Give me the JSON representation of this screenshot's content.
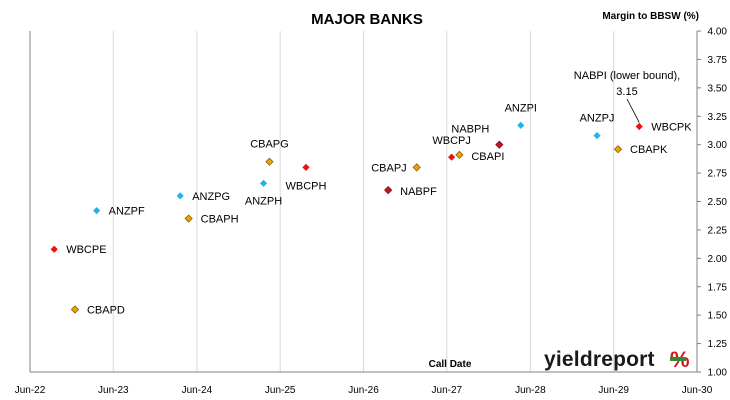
{
  "colors": {
    "CBA": "#e8a400",
    "ANZ": "#1fb5e8",
    "WBC": "#e8140e",
    "NAB": "#c8141e",
    "logo_red": "#d4141c",
    "logo_green": "#2e8b3a"
  },
  "logo": {
    "text": "yieldreport",
    "pct": "%"
  },
  "chart_data": {
    "type": "scatter",
    "title": "MAJOR BANKS",
    "xlabel": "Call Date",
    "ylabel": "Margin to BBSW (%)",
    "x_ticks": [
      "Jun-22",
      "Jun-23",
      "Jun-24",
      "Jun-25",
      "Jun-26",
      "Jun-27",
      "Jun-28",
      "Jun-29",
      "Jun-30"
    ],
    "xlim": [
      "2022-06",
      "2030-06"
    ],
    "ylim": [
      1.0,
      4.0
    ],
    "y_ticks": [
      "1.00",
      "1.25",
      "1.50",
      "1.75",
      "2.00",
      "2.25",
      "2.50",
      "2.75",
      "3.00",
      "3.25",
      "3.50",
      "3.75",
      "4.00"
    ],
    "grid": {
      "vertical": true,
      "horizontal": false
    },
    "points": [
      {
        "name": "WBCPE",
        "issuer": "WBC",
        "x": "2022-09-15",
        "y": 2.08
      },
      {
        "name": "CBAPD",
        "issuer": "CBA",
        "x": "2022-12-15",
        "y": 1.55
      },
      {
        "name": "ANZPF",
        "issuer": "ANZ",
        "x": "2023-03-20",
        "y": 2.42
      },
      {
        "name": "ANZPG",
        "issuer": "ANZ",
        "x": "2024-03-20",
        "y": 2.55
      },
      {
        "name": "CBAPH",
        "issuer": "CBA",
        "x": "2024-04-26",
        "y": 2.35
      },
      {
        "name": "ANZPH",
        "issuer": "ANZ",
        "x": "2025-03-20",
        "y": 2.66
      },
      {
        "name": "CBAPG",
        "issuer": "CBA",
        "x": "2025-04-15",
        "y": 2.85
      },
      {
        "name": "WBCPH",
        "issuer": "WBC",
        "x": "2025-09-22",
        "y": 2.8
      },
      {
        "name": "NABPF",
        "issuer": "NAB",
        "x": "2026-09-17",
        "y": 2.6
      },
      {
        "name": "CBAPJ",
        "issuer": "CBA",
        "x": "2027-01-20",
        "y": 2.8
      },
      {
        "name": "WBCPJ",
        "issuer": "WBC",
        "x": "2027-06-22",
        "y": 2.89
      },
      {
        "name": "CBAPI",
        "issuer": "CBA",
        "x": "2027-07-26",
        "y": 2.91
      },
      {
        "name": "NABPH",
        "issuer": "NAB",
        "x": "2028-01-17",
        "y": 3.0
      },
      {
        "name": "ANZPI",
        "issuer": "ANZ",
        "x": "2028-04-20",
        "y": 3.17
      },
      {
        "name": "ANZPJ",
        "issuer": "ANZ",
        "x": "2029-03-20",
        "y": 3.08
      },
      {
        "name": "CBAPK",
        "issuer": "CBA",
        "x": "2029-06-20",
        "y": 2.96
      },
      {
        "name": "WBCPK",
        "issuer": "WBC",
        "x": "2029-09-21",
        "y": 3.16
      }
    ],
    "annotations": [
      {
        "line1": "NABPI (lower bound),",
        "line2": "3.15"
      }
    ]
  }
}
